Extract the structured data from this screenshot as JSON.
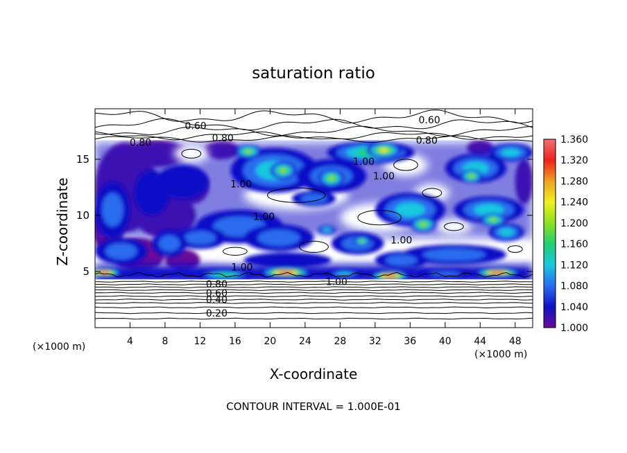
{
  "chart_data": {
    "type": "heatmap",
    "title": "saturation ratio",
    "xlabel": "X-coordinate",
    "ylabel": "Z-coordinate",
    "x_unit_label_left": "(×1000 m)",
    "x_unit_label_right": "(×1000 m)",
    "footer": "CONTOUR INTERVAL = 1.000E-01",
    "xlim": [
      0,
      50
    ],
    "ylim": [
      0,
      19.5
    ],
    "x_ticks": [
      4,
      8,
      12,
      16,
      20,
      24,
      28,
      32,
      36,
      40,
      44,
      48
    ],
    "y_ticks": [
      5,
      10,
      15
    ],
    "colorbar": {
      "range": [
        1.0,
        1.36
      ],
      "ticks": [
        "1.360",
        "1.320",
        "1.280",
        "1.240",
        "1.200",
        "1.160",
        "1.120",
        "1.080",
        "1.040",
        "1.000"
      ],
      "colors": [
        "#6a0a9a",
        "#1010c8",
        "#2a6cf0",
        "#16c8e0",
        "#20d070",
        "#8ce020",
        "#f0f020",
        "#f0a020",
        "#f02020",
        "#f07070"
      ]
    },
    "contour_labels": [
      {
        "text": "0.60",
        "x": 11.5,
        "z": 18.0
      },
      {
        "text": "0.60",
        "x": 38.2,
        "z": 18.5
      },
      {
        "text": "0.80",
        "x": 14.6,
        "z": 16.9
      },
      {
        "text": "0.80",
        "x": 5.2,
        "z": 16.5
      },
      {
        "text": "0.80",
        "x": 37.9,
        "z": 16.7
      },
      {
        "text": "1.00",
        "x": 30.7,
        "z": 14.8
      },
      {
        "text": "1.00",
        "x": 33.0,
        "z": 13.5
      },
      {
        "text": "1.00",
        "x": 16.7,
        "z": 12.8
      },
      {
        "text": "1.00",
        "x": 19.3,
        "z": 9.9
      },
      {
        "text": "1.00",
        "x": 35.0,
        "z": 7.8
      },
      {
        "text": "1.00",
        "x": 16.8,
        "z": 5.4
      },
      {
        "text": "1.00",
        "x": 27.6,
        "z": 4.1
      },
      {
        "text": "0.80",
        "x": 13.9,
        "z": 3.9
      },
      {
        "text": "0.60",
        "x": 13.9,
        "z": 3.1
      },
      {
        "text": "0.40",
        "x": 13.9,
        "z": 2.5
      },
      {
        "text": "0.20",
        "x": 13.9,
        "z": 1.3
      }
    ],
    "field_blobs": [
      {
        "x": 21.8,
        "z": 4.9,
        "rx": 2.8,
        "rz": 0.45,
        "v": 1.34
      },
      {
        "x": 1.0,
        "z": 4.9,
        "rx": 2.0,
        "rz": 0.4,
        "v": 1.34
      },
      {
        "x": 33.7,
        "z": 4.6,
        "rx": 2.2,
        "rz": 0.45,
        "v": 1.34
      },
      {
        "x": 46.0,
        "z": 4.9,
        "rx": 2.5,
        "rz": 0.4,
        "v": 1.34
      },
      {
        "x": 14.8,
        "z": 4.7,
        "rx": 3.0,
        "rz": 0.45,
        "v": 1.15
      },
      {
        "x": 28.5,
        "z": 4.8,
        "rx": 2.0,
        "rz": 0.35,
        "v": 1.12
      },
      {
        "x": 40.0,
        "z": 4.8,
        "rx": 3.0,
        "rz": 0.35,
        "v": 1.08
      },
      {
        "x": 31.5,
        "z": 15.6,
        "rx": 5.0,
        "rz": 1.0,
        "v": 1.15
      },
      {
        "x": 33.0,
        "z": 15.8,
        "rx": 2.0,
        "rz": 0.7,
        "v": 1.25
      },
      {
        "x": 43.5,
        "z": 14.2,
        "rx": 3.5,
        "rz": 1.3,
        "v": 1.12
      },
      {
        "x": 47.5,
        "z": 15.6,
        "rx": 2.5,
        "rz": 0.8,
        "v": 1.1
      },
      {
        "x": 20.5,
        "z": 14.0,
        "rx": 5.0,
        "rz": 2.0,
        "v": 1.1
      },
      {
        "x": 27.0,
        "z": 13.5,
        "rx": 4.0,
        "rz": 1.5,
        "v": 1.08
      },
      {
        "x": 27.0,
        "z": 13.3,
        "rx": 1.5,
        "rz": 0.8,
        "v": 1.2
      },
      {
        "x": 21.5,
        "z": 14.0,
        "rx": 1.5,
        "rz": 0.8,
        "v": 1.22
      },
      {
        "x": 17.5,
        "z": 15.7,
        "rx": 1.5,
        "rz": 0.6,
        "v": 1.2
      },
      {
        "x": 43.0,
        "z": 13.5,
        "rx": 1.3,
        "rz": 0.6,
        "v": 1.2
      },
      {
        "x": 25.0,
        "z": 11.5,
        "rx": 2.5,
        "rz": 0.7,
        "v": 1.06
      },
      {
        "x": 36.0,
        "z": 10.5,
        "rx": 4.0,
        "rz": 1.5,
        "v": 1.1
      },
      {
        "x": 37.5,
        "z": 9.2,
        "rx": 1.5,
        "rz": 0.7,
        "v": 1.2
      },
      {
        "x": 45.0,
        "z": 10.5,
        "rx": 4.0,
        "rz": 1.2,
        "v": 1.1
      },
      {
        "x": 45.5,
        "z": 9.6,
        "rx": 1.5,
        "rz": 0.6,
        "v": 1.22
      },
      {
        "x": 47.0,
        "z": 8.5,
        "rx": 2.0,
        "rz": 0.8,
        "v": 1.12
      },
      {
        "x": 16.5,
        "z": 9.0,
        "rx": 5.0,
        "rz": 1.5,
        "v": 1.07
      },
      {
        "x": 21.0,
        "z": 8.0,
        "rx": 4.0,
        "rz": 1.2,
        "v": 1.06
      },
      {
        "x": 30.0,
        "z": 7.5,
        "rx": 3.0,
        "rz": 1.0,
        "v": 1.07
      },
      {
        "x": 30.5,
        "z": 7.7,
        "rx": 1.0,
        "rz": 0.4,
        "v": 1.2
      },
      {
        "x": 26.5,
        "z": 8.7,
        "rx": 1.0,
        "rz": 0.4,
        "v": 1.14
      },
      {
        "x": 12.0,
        "z": 8.0,
        "rx": 3.0,
        "rz": 1.0,
        "v": 1.08
      },
      {
        "x": 41.0,
        "z": 6.5,
        "rx": 6.0,
        "rz": 0.9,
        "v": 1.07
      },
      {
        "x": 35.0,
        "z": 6.0,
        "rx": 3.0,
        "rz": 0.8,
        "v": 1.06
      },
      {
        "x": 22.0,
        "z": 6.0,
        "rx": 5.0,
        "rz": 0.7,
        "v": 1.05
      },
      {
        "x": 2.0,
        "z": 10.5,
        "rx": 2.0,
        "rz": 2.5,
        "v": 1.07
      },
      {
        "x": 3.0,
        "z": 6.8,
        "rx": 3.0,
        "rz": 1.2,
        "v": 1.08
      },
      {
        "x": 6.5,
        "z": 12.0,
        "rx": 2.0,
        "rz": 2.0,
        "v": 1.05
      },
      {
        "x": 10.0,
        "z": 13.0,
        "rx": 3.0,
        "rz": 1.5,
        "v": 1.04
      },
      {
        "x": 8.5,
        "z": 7.5,
        "rx": 2.0,
        "rz": 1.2,
        "v": 1.06
      }
    ],
    "purple_regions": [
      {
        "x": 3.5,
        "z": 12.5,
        "rx": 3.5,
        "rz": 4.0
      },
      {
        "x": 1.5,
        "z": 9.0,
        "rx": 1.8,
        "rz": 2.5
      },
      {
        "x": 7.0,
        "z": 15.5,
        "rx": 3.5,
        "rz": 1.2
      },
      {
        "x": 8.0,
        "z": 10.0,
        "rx": 3.5,
        "rz": 2.0
      },
      {
        "x": 11.0,
        "z": 12.5,
        "rx": 2.0,
        "rz": 1.5
      },
      {
        "x": 14.5,
        "z": 15.8,
        "rx": 2.0,
        "rz": 0.8
      },
      {
        "x": 5.0,
        "z": 6.5,
        "rx": 3.0,
        "rz": 1.5
      },
      {
        "x": 10.0,
        "z": 6.0,
        "rx": 2.0,
        "rz": 1.0
      },
      {
        "x": 44.0,
        "z": 16.0,
        "rx": 1.5,
        "rz": 0.7
      },
      {
        "x": 49.0,
        "z": 13.0,
        "rx": 1.0,
        "rz": 2.0
      }
    ],
    "clear_regions": [
      {
        "x": 23.0,
        "z": 11.8,
        "rx": 6.0,
        "rz": 1.3
      },
      {
        "x": 32.5,
        "z": 9.8,
        "rx": 4.5,
        "rz": 1.3
      },
      {
        "x": 25.0,
        "z": 7.2,
        "rx": 3.0,
        "rz": 1.0
      },
      {
        "x": 16.0,
        "z": 6.8,
        "rx": 2.5,
        "rz": 0.7
      },
      {
        "x": 35.5,
        "z": 14.5,
        "rx": 2.5,
        "rz": 1.0
      },
      {
        "x": 38.5,
        "z": 12.0,
        "rx": 2.0,
        "rz": 0.8
      },
      {
        "x": 41.0,
        "z": 9.0,
        "rx": 2.0,
        "rz": 0.7
      },
      {
        "x": 48.0,
        "z": 7.0,
        "rx": 1.5,
        "rz": 0.6
      },
      {
        "x": 11.0,
        "z": 15.5,
        "rx": 2.0,
        "rz": 0.8
      }
    ]
  }
}
